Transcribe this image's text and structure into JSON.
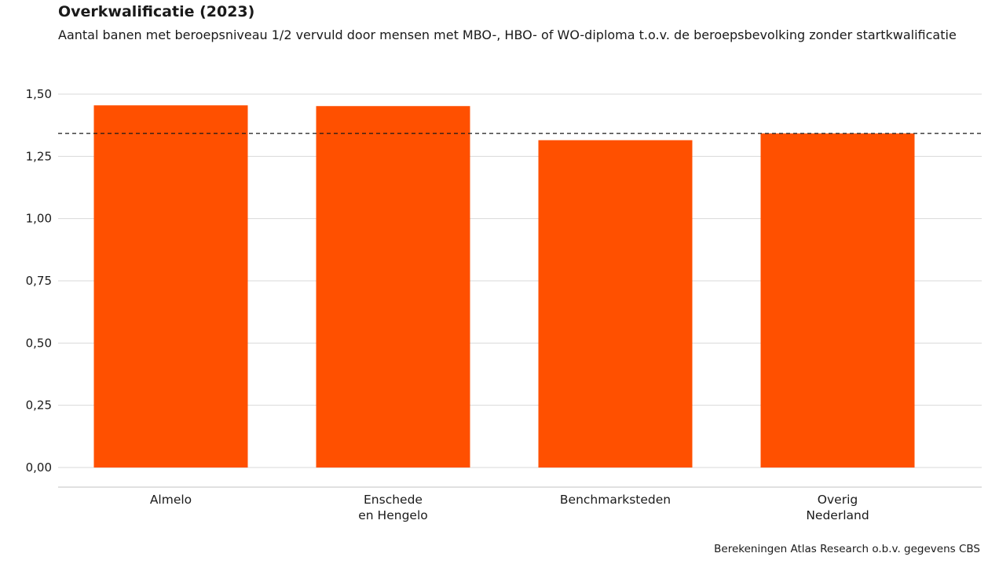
{
  "header": {
    "title": "Overkwalificatie (2023)",
    "subtitle": "Aantal banen met beroepsniveau 1/2 vervuld door mensen met MBO-, HBO- of WO-diploma t.o.v. de beroepsbevolking zonder startkwalificatie"
  },
  "caption": "Berekeningen Atlas Research o.b.v. gegevens CBS",
  "colors": {
    "bar": "#ff5000",
    "grid": "#d9d9d9",
    "reference_line": "#1a1a1a"
  },
  "chart_data": {
    "type": "bar",
    "categories": [
      [
        "Almelo"
      ],
      [
        "Enschede",
        "en Hengelo"
      ],
      [
        "Benchmarksteden"
      ],
      [
        "Overig",
        "Nederland"
      ]
    ],
    "values": [
      1.455,
      1.452,
      1.315,
      1.342
    ],
    "reference_line": 1.342,
    "ylim": [
      0,
      1.5
    ],
    "yticks": [
      0,
      0.25,
      0.5,
      0.75,
      1.0,
      1.25,
      1.5
    ],
    "ytick_labels": [
      "0,00",
      "0,25",
      "0,50",
      "0,75",
      "1,00",
      "1,25",
      "1,50"
    ],
    "grid": true,
    "legend": "none"
  }
}
